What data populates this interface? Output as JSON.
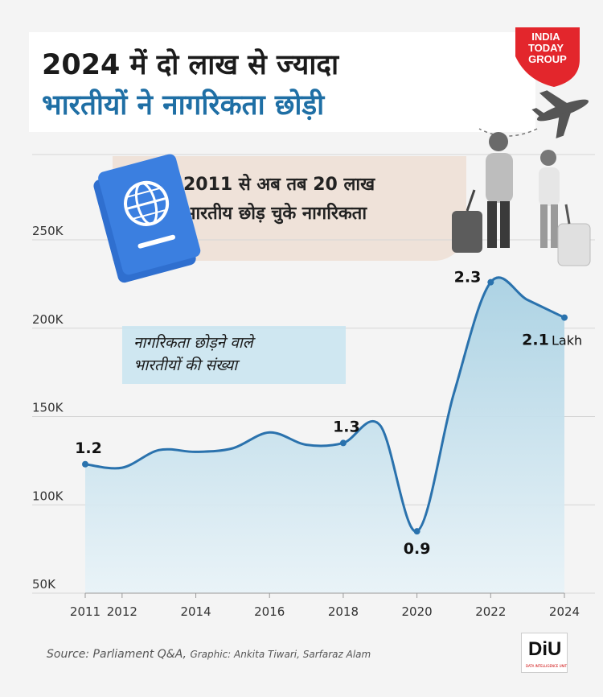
{
  "title": {
    "line1": "2024 में दो लाख से ज्यादा",
    "line2": "भारतीयों ने नागरिकता छोड़ी"
  },
  "logo": {
    "line1": "INDIA",
    "line2": "TODAY",
    "line3": "GROUP",
    "color": "#e3262c"
  },
  "callout": {
    "line1": "2011 से अब तब 20 लाख",
    "line2": "भारतीय छोड़ चुके नागरिकता"
  },
  "series_label": {
    "line1": "नागरिकता छोड़ने वाले",
    "line2": "भारतीयों की संख्या"
  },
  "source": {
    "text": "Source: Parliament Q&A,",
    "graphic": "Graphic:  Ankita Tiwari, Sarfaraz Alam"
  },
  "diu": {
    "text": "DiU",
    "sub": "DATA INTELLIGENCE UNIT"
  },
  "colors": {
    "line": "#2a72ad",
    "area": "#cfe5ef",
    "title_accent": "#1f6fa5"
  },
  "chart_data": {
    "type": "area",
    "x": [
      2011,
      2012,
      2013,
      2014,
      2015,
      2016,
      2017,
      2018,
      2019,
      2020,
      2021,
      2022,
      2023,
      2024
    ],
    "values": [
      123000,
      121000,
      131000,
      130000,
      132000,
      141000,
      134000,
      135000,
      145000,
      85000,
      163000,
      226000,
      216000,
      206000
    ],
    "ylim": [
      50000,
      250000
    ],
    "yticks": [
      50000,
      100000,
      150000,
      200000,
      250000
    ],
    "ytick_labels": [
      "50K",
      "100K",
      "150K",
      "200K",
      "250K"
    ],
    "xticks": [
      2011,
      2012,
      2014,
      2016,
      2018,
      2020,
      2022,
      2024
    ],
    "xtick_labels": [
      "2011",
      "2012",
      "2014",
      "2016",
      "2018",
      "2020",
      "2022",
      "2024"
    ],
    "annotations": [
      {
        "x": 2011,
        "text": "1.2",
        "pos": "above"
      },
      {
        "x": 2018,
        "text": "1.3",
        "pos": "above"
      },
      {
        "x": 2020,
        "text": "0.9",
        "pos": "below"
      },
      {
        "x": 2022,
        "text": "2.3",
        "pos": "left"
      },
      {
        "x": 2024,
        "text": "2.1",
        "pos": "below",
        "unit": "Lakh"
      }
    ],
    "grid": true
  }
}
